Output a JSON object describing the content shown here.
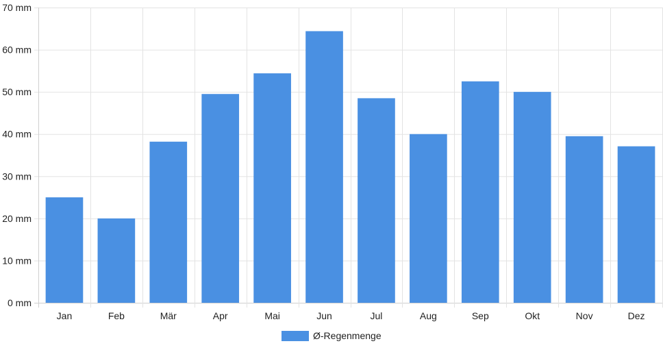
{
  "chart_data": {
    "type": "bar",
    "categories": [
      "Jan",
      "Feb",
      "Mär",
      "Apr",
      "Mai",
      "Jun",
      "Jul",
      "Aug",
      "Sep",
      "Okt",
      "Nov",
      "Dez"
    ],
    "series": [
      {
        "name": "Ø-Regenmenge",
        "values": [
          25,
          20,
          38.2,
          49.5,
          54.4,
          64.4,
          48.5,
          40,
          52.5,
          50,
          39.5,
          37.1
        ],
        "color": "#4a90e2"
      }
    ],
    "y_ticks": [
      0,
      10,
      20,
      30,
      40,
      50,
      60,
      70
    ],
    "y_unit": "mm",
    "ylim": [
      0,
      70
    ],
    "grid": true,
    "legend_position": "bottom"
  }
}
